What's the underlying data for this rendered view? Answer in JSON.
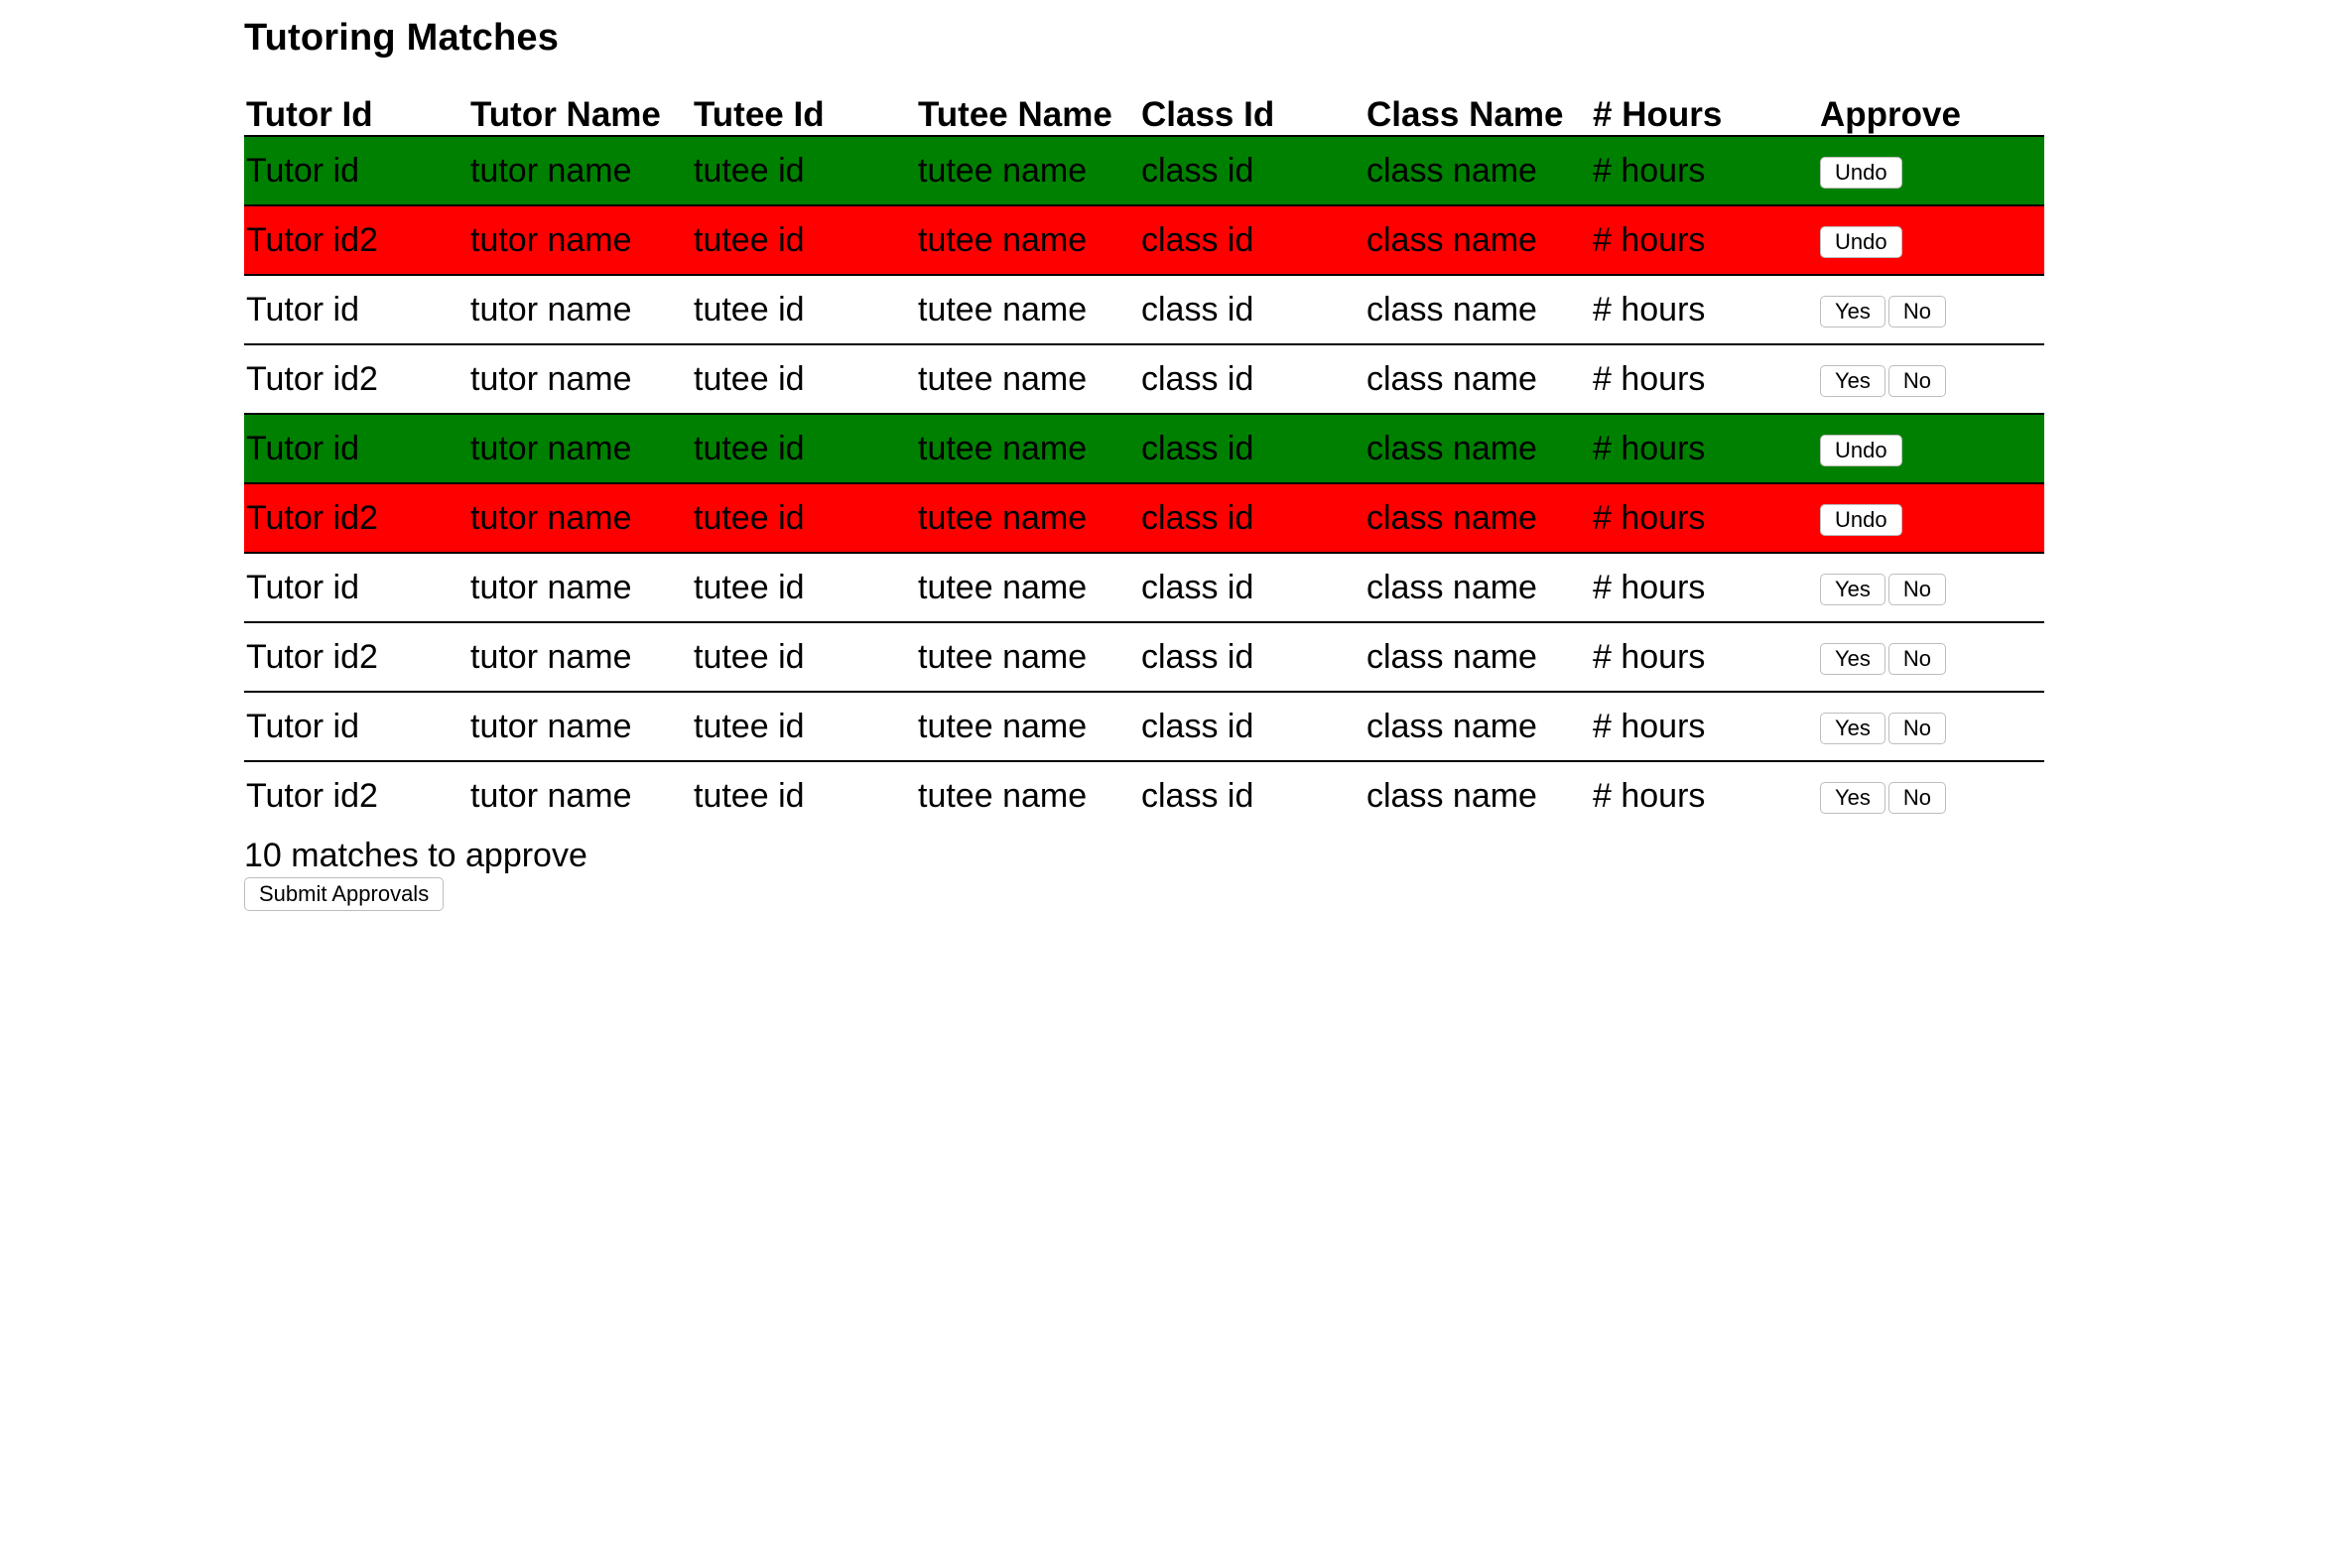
{
  "page": {
    "title": "Tutoring Matches"
  },
  "table": {
    "headers": [
      "Tutor Id",
      "Tutor Name",
      "Tutee Id",
      "Tutee Name",
      "Class Id",
      "Class Name",
      "# Hours",
      "Approve"
    ],
    "rows": [
      {
        "tutor_id": "Tutor id",
        "tutor_name": "tutor name",
        "tutee_id": "tutee id",
        "tutee_name": "tutee name",
        "class_id": "class id",
        "class_name": "class name",
        "hours": "# hours",
        "status": "approved"
      },
      {
        "tutor_id": "Tutor id2",
        "tutor_name": "tutor name",
        "tutee_id": "tutee id",
        "tutee_name": "tutee name",
        "class_id": "class id",
        "class_name": "class name",
        "hours": "# hours",
        "status": "rejected"
      },
      {
        "tutor_id": "Tutor id",
        "tutor_name": "tutor name",
        "tutee_id": "tutee id",
        "tutee_name": "tutee name",
        "class_id": "class id",
        "class_name": "class name",
        "hours": "# hours",
        "status": "pending"
      },
      {
        "tutor_id": "Tutor id2",
        "tutor_name": "tutor name",
        "tutee_id": "tutee id",
        "tutee_name": "tutee name",
        "class_id": "class id",
        "class_name": "class name",
        "hours": "# hours",
        "status": "pending"
      },
      {
        "tutor_id": "Tutor id",
        "tutor_name": "tutor name",
        "tutee_id": "tutee id",
        "tutee_name": "tutee name",
        "class_id": "class id",
        "class_name": "class name",
        "hours": "# hours",
        "status": "approved"
      },
      {
        "tutor_id": "Tutor id2",
        "tutor_name": "tutor name",
        "tutee_id": "tutee id",
        "tutee_name": "tutee name",
        "class_id": "class id",
        "class_name": "class name",
        "hours": "# hours",
        "status": "rejected"
      },
      {
        "tutor_id": "Tutor id",
        "tutor_name": "tutor name",
        "tutee_id": "tutee id",
        "tutee_name": "tutee name",
        "class_id": "class id",
        "class_name": "class name",
        "hours": "# hours",
        "status": "pending"
      },
      {
        "tutor_id": "Tutor id2",
        "tutor_name": "tutor name",
        "tutee_id": "tutee id",
        "tutee_name": "tutee name",
        "class_id": "class id",
        "class_name": "class name",
        "hours": "# hours",
        "status": "pending"
      },
      {
        "tutor_id": "Tutor id",
        "tutor_name": "tutor name",
        "tutee_id": "tutee id",
        "tutee_name": "tutee name",
        "class_id": "class id",
        "class_name": "class name",
        "hours": "# hours",
        "status": "pending"
      },
      {
        "tutor_id": "Tutor id2",
        "tutor_name": "tutor name",
        "tutee_id": "tutee id",
        "tutee_name": "tutee name",
        "class_id": "class id",
        "class_name": "class name",
        "hours": "# hours",
        "status": "pending"
      }
    ]
  },
  "buttons": {
    "undo_label": "Undo",
    "yes_label": "Yes",
    "no_label": "No",
    "submit_label": "Submit Approvals"
  },
  "summary": {
    "text": "10 matches to approve"
  },
  "colors": {
    "approved": "#008000",
    "rejected": "#ff0000"
  }
}
